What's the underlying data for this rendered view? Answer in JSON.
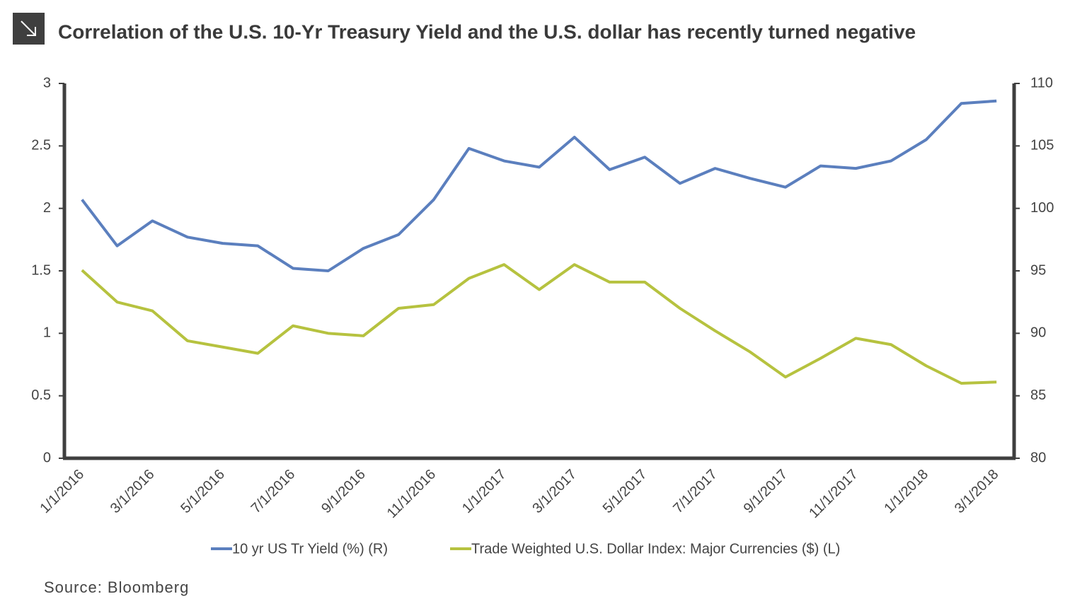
{
  "chart_data": {
    "type": "line",
    "title": "Correlation of the U.S. 10-Yr Treasury Yield and the U.S. dollar has recently turned negative",
    "source": "Source: Bloomberg",
    "categories": [
      "1/1/2016",
      null,
      "3/1/2016",
      null,
      "5/1/2016",
      null,
      "7/1/2016",
      null,
      "9/1/2016",
      null,
      "11/1/2016",
      null,
      "1/1/2017",
      null,
      "3/1/2017",
      null,
      "5/1/2017",
      null,
      "7/1/2017",
      null,
      "9/1/2017",
      null,
      "11/1/2017",
      null,
      "1/1/2018",
      null,
      "3/1/2018"
    ],
    "series": [
      {
        "name": "10 yr US Tr Yield (%) (R)",
        "color": "#5b7fbe",
        "axis": "y",
        "values": [
          2.07,
          1.7,
          1.9,
          1.77,
          1.72,
          1.7,
          1.52,
          1.5,
          1.68,
          1.79,
          2.07,
          2.48,
          2.38,
          2.33,
          2.57,
          2.31,
          2.41,
          2.2,
          2.32,
          2.24,
          2.17,
          2.34,
          2.32,
          2.38,
          2.55,
          2.84,
          2.86
        ]
      },
      {
        "name": "Trade Weighted U.S. Dollar Index: Major Currencies ($) (L)",
        "color": "#b6c23f",
        "axis": "y2",
        "values": [
          95.05,
          92.5,
          91.8,
          89.4,
          88.9,
          88.4,
          90.6,
          90.0,
          89.8,
          92.0,
          92.3,
          94.4,
          95.5,
          93.5,
          95.5,
          94.1,
          94.1,
          92.0,
          90.2,
          88.5,
          86.5,
          88.0,
          89.6,
          89.1,
          87.4,
          86.0,
          86.1
        ]
      }
    ],
    "ylim": [
      0,
      3
    ],
    "yticks": [
      0,
      0.5,
      1,
      1.5,
      2,
      2.5,
      3
    ],
    "y2lim": [
      80,
      110
    ],
    "y2ticks": [
      80,
      85,
      90,
      95,
      100,
      105,
      110
    ],
    "grid": false
  }
}
